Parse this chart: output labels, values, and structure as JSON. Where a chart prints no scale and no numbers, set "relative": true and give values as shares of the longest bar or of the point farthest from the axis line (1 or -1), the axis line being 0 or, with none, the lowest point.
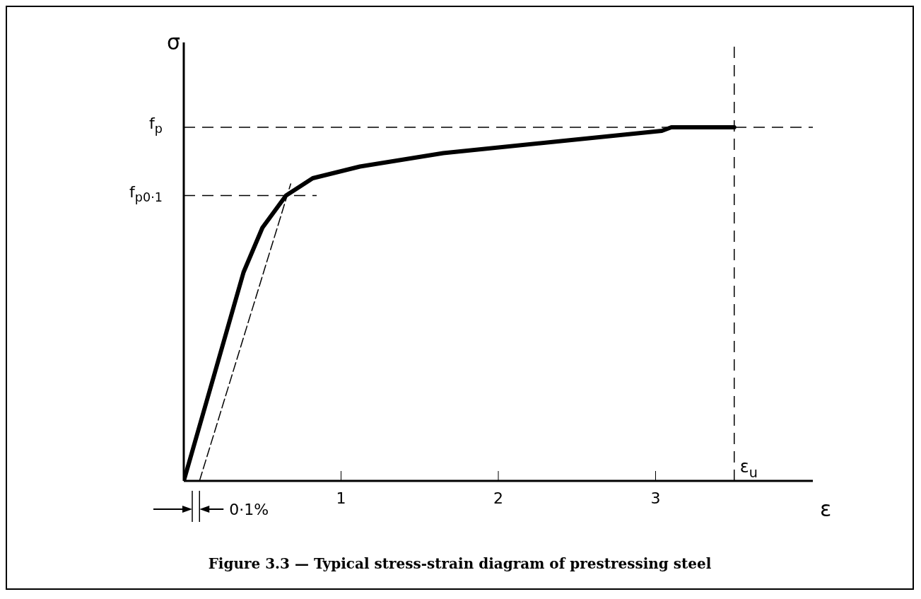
{
  "chart_data": {
    "type": "line",
    "title": "Figure 3.3 — Typical stress-strain diagram of prestressing steel",
    "xlabel": "ε",
    "ylabel": "σ",
    "relative": true,
    "xlim": [
      0,
      4
    ],
    "xticks": [
      1,
      2,
      3
    ],
    "series": [
      {
        "color": "#000000",
        "line_style": "solid",
        "x": [
          0,
          0.2,
          0.38,
          0.5,
          0.65,
          0.82,
          1.12,
          1.65,
          2.42,
          3.04,
          3.1,
          3.5
        ],
        "values": [
          0,
          0.31,
          0.59,
          0.716,
          0.807,
          0.856,
          0.889,
          0.927,
          0.962,
          0.99,
          1,
          1
        ]
      },
      {
        "color": "#000000",
        "line_style": "dashed",
        "x": [
          0.1,
          0.68
        ],
        "values": [
          0,
          0.84
        ]
      }
    ],
    "ref_lines": [
      {
        "axis": "y",
        "value": 1,
        "label": "f$_{p}$",
        "line_style": "dashed"
      },
      {
        "axis": "y",
        "value": 0.807,
        "label": "f$_{p0·1}$",
        "line_style": "dashed"
      },
      {
        "axis": "x",
        "value": 3.5,
        "label": "ε$_{u}$",
        "line_style": "dashed"
      }
    ],
    "annotations": [
      {
        "text": "0·1%",
        "x": 0.1,
        "y": 0
      }
    ]
  }
}
